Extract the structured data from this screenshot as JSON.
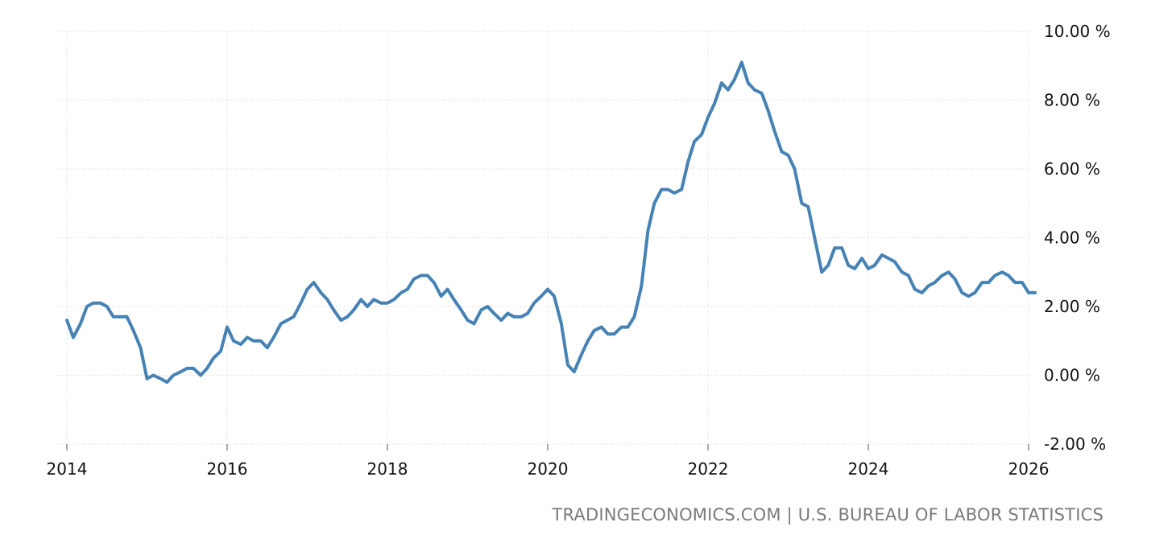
{
  "source_text": "TRADINGECONOMICS.COM | U.S. BUREAU OF LABOR STATISTICS",
  "colors": {
    "series": "#4682b4",
    "grid": "#d4d4d4",
    "text": "#111111",
    "source": "#7a7a7a"
  },
  "chart_data": {
    "type": "line",
    "title": "",
    "xlabel": "",
    "ylabel": "",
    "ylim": [
      -2,
      10
    ],
    "xlim": [
      2014,
      2026
    ],
    "y_ticks": [
      10,
      8,
      6,
      4,
      2,
      0,
      -2
    ],
    "y_tick_labels": [
      "10.00 %",
      "8.00 %",
      "6.00 %",
      "4.00 %",
      "2.00 %",
      "0.00 %",
      "-2.00 %"
    ],
    "x_ticks": [
      2014,
      2016,
      2018,
      2020,
      2022,
      2024,
      2026
    ],
    "x_tick_labels": [
      "2014",
      "2016",
      "2018",
      "2020",
      "2022",
      "2024",
      "2026"
    ],
    "grid": true,
    "legend": "none",
    "series": [
      {
        "x": [
          2014.0,
          2014.08,
          2014.17,
          2014.25,
          2014.33,
          2014.42,
          2014.5,
          2014.58,
          2014.67,
          2014.75,
          2014.83,
          2014.92,
          2015.0,
          2015.08,
          2015.17,
          2015.25,
          2015.33,
          2015.42,
          2015.5,
          2015.58,
          2015.67,
          2015.75,
          2015.83,
          2015.92,
          2016.0,
          2016.08,
          2016.17,
          2016.25,
          2016.33,
          2016.42,
          2016.5,
          2016.58,
          2016.67,
          2016.75,
          2016.83,
          2016.92,
          2017.0,
          2017.08,
          2017.17,
          2017.25,
          2017.33,
          2017.42,
          2017.5,
          2017.58,
          2017.67,
          2017.75,
          2017.83,
          2017.92,
          2018.0,
          2018.08,
          2018.17,
          2018.25,
          2018.33,
          2018.42,
          2018.5,
          2018.58,
          2018.67,
          2018.75,
          2018.83,
          2018.92,
          2019.0,
          2019.08,
          2019.17,
          2019.25,
          2019.33,
          2019.42,
          2019.5,
          2019.58,
          2019.67,
          2019.75,
          2019.83,
          2019.92,
          2020.0,
          2020.08,
          2020.17,
          2020.25,
          2020.33,
          2020.42,
          2020.5,
          2020.58,
          2020.67,
          2020.75,
          2020.83,
          2020.92,
          2021.0,
          2021.08,
          2021.17,
          2021.25,
          2021.33,
          2021.42,
          2021.5,
          2021.58,
          2021.67,
          2021.75,
          2021.83,
          2021.92,
          2022.0,
          2022.08,
          2022.17,
          2022.25,
          2022.33,
          2022.42,
          2022.5,
          2022.58,
          2022.67,
          2022.75,
          2022.83,
          2022.92,
          2023.0,
          2023.08,
          2023.17,
          2023.25,
          2023.33,
          2023.42,
          2023.5,
          2023.58,
          2023.67,
          2023.75,
          2023.83,
          2023.92,
          2024.0,
          2024.08,
          2024.17,
          2024.25,
          2024.33,
          2024.42,
          2024.5,
          2024.58,
          2024.67,
          2024.75,
          2024.83,
          2024.92,
          2025.0,
          2025.08,
          2025.17,
          2025.25,
          2025.33,
          2025.42,
          2025.5,
          2025.58,
          2025.67,
          2025.75,
          2025.83,
          2025.92,
          2026.0,
          2026.08
        ],
        "values": [
          1.6,
          1.1,
          1.5,
          2.0,
          2.1,
          2.1,
          2.0,
          1.7,
          1.7,
          1.7,
          1.3,
          0.8,
          -0.1,
          0.0,
          -0.1,
          -0.2,
          0.0,
          0.1,
          0.2,
          0.2,
          0.0,
          0.2,
          0.5,
          0.7,
          1.4,
          1.0,
          0.9,
          1.1,
          1.0,
          1.0,
          0.8,
          1.1,
          1.5,
          1.6,
          1.7,
          2.1,
          2.5,
          2.7,
          2.4,
          2.2,
          1.9,
          1.6,
          1.7,
          1.9,
          2.2,
          2.0,
          2.2,
          2.1,
          2.1,
          2.2,
          2.4,
          2.5,
          2.8,
          2.9,
          2.9,
          2.7,
          2.3,
          2.5,
          2.2,
          1.9,
          1.6,
          1.5,
          1.9,
          2.0,
          1.8,
          1.6,
          1.8,
          1.7,
          1.7,
          1.8,
          2.1,
          2.3,
          2.5,
          2.3,
          1.5,
          0.3,
          0.1,
          0.6,
          1.0,
          1.3,
          1.4,
          1.2,
          1.2,
          1.4,
          1.4,
          1.7,
          2.6,
          4.2,
          5.0,
          5.4,
          5.4,
          5.3,
          5.4,
          6.2,
          6.8,
          7.0,
          7.5,
          7.9,
          8.5,
          8.3,
          8.6,
          9.1,
          8.5,
          8.3,
          8.2,
          7.7,
          7.1,
          6.5,
          6.4,
          6.0,
          5.0,
          4.9,
          4.0,
          3.0,
          3.2,
          3.7,
          3.7,
          3.2,
          3.1,
          3.4,
          3.1,
          3.2,
          3.5,
          3.4,
          3.3,
          3.0,
          2.9,
          2.5,
          2.4,
          2.6,
          2.7,
          2.9,
          3.0,
          2.8,
          2.4,
          2.3,
          2.4,
          2.7,
          2.7,
          2.9,
          3.0,
          2.9,
          2.7,
          2.7,
          2.4,
          2.4
        ]
      }
    ]
  }
}
